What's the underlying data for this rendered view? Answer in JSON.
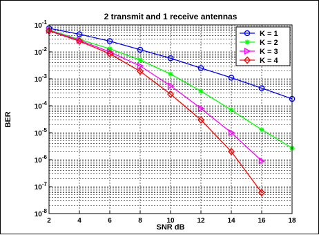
{
  "chart_data": {
    "type": "line",
    "title": "2 transmit and 1 receive antennas",
    "xlabel": "SNR dB",
    "ylabel": "BER",
    "xlim": [
      2,
      18
    ],
    "ylim_exp": [
      -8,
      -1
    ],
    "y_scale": "log",
    "x_ticks": [
      "2",
      "4",
      "6",
      "8",
      "10",
      "12",
      "14",
      "16",
      "18"
    ],
    "y_tick_mantissa": "10",
    "y_tick_exponents": [
      "-1",
      "-2",
      "-3",
      "-4",
      "-5",
      "-6",
      "-7",
      "-8"
    ],
    "grid": "on",
    "legend_position": "top-right",
    "series": [
      {
        "name": "K = 1",
        "color": "#0000ff",
        "marker": "circle",
        "x": [
          2,
          4,
          6,
          8,
          10,
          12,
          14,
          16,
          18
        ],
        "y": [
          0.075,
          0.045,
          0.025,
          0.012,
          0.0058,
          0.0025,
          0.0011,
          0.00045,
          0.00018
        ]
      },
      {
        "name": "K = 2",
        "color": "#00ff00",
        "marker": "star",
        "x": [
          2,
          4,
          6,
          8,
          10,
          12,
          14,
          16,
          18
        ],
        "y": [
          0.065,
          0.029,
          0.013,
          0.005,
          0.0015,
          0.00035,
          7e-05,
          1.3e-05,
          2.7e-06
        ]
      },
      {
        "name": "K = 3",
        "color": "#ff00ff",
        "marker": "triangle-right",
        "x": [
          2,
          4,
          6,
          8,
          10,
          12,
          14,
          16
        ],
        "y": [
          0.063,
          0.027,
          0.01,
          0.003,
          0.00055,
          8e-05,
          1e-05,
          9e-07
        ]
      },
      {
        "name": "K = 4",
        "color": "#ff0000",
        "marker": "diamond",
        "x": [
          2,
          4,
          6,
          8,
          10,
          12,
          14,
          16
        ],
        "y": [
          0.06,
          0.025,
          0.0085,
          0.0019,
          0.00027,
          3e-05,
          2e-06,
          6e-08
        ]
      }
    ]
  }
}
